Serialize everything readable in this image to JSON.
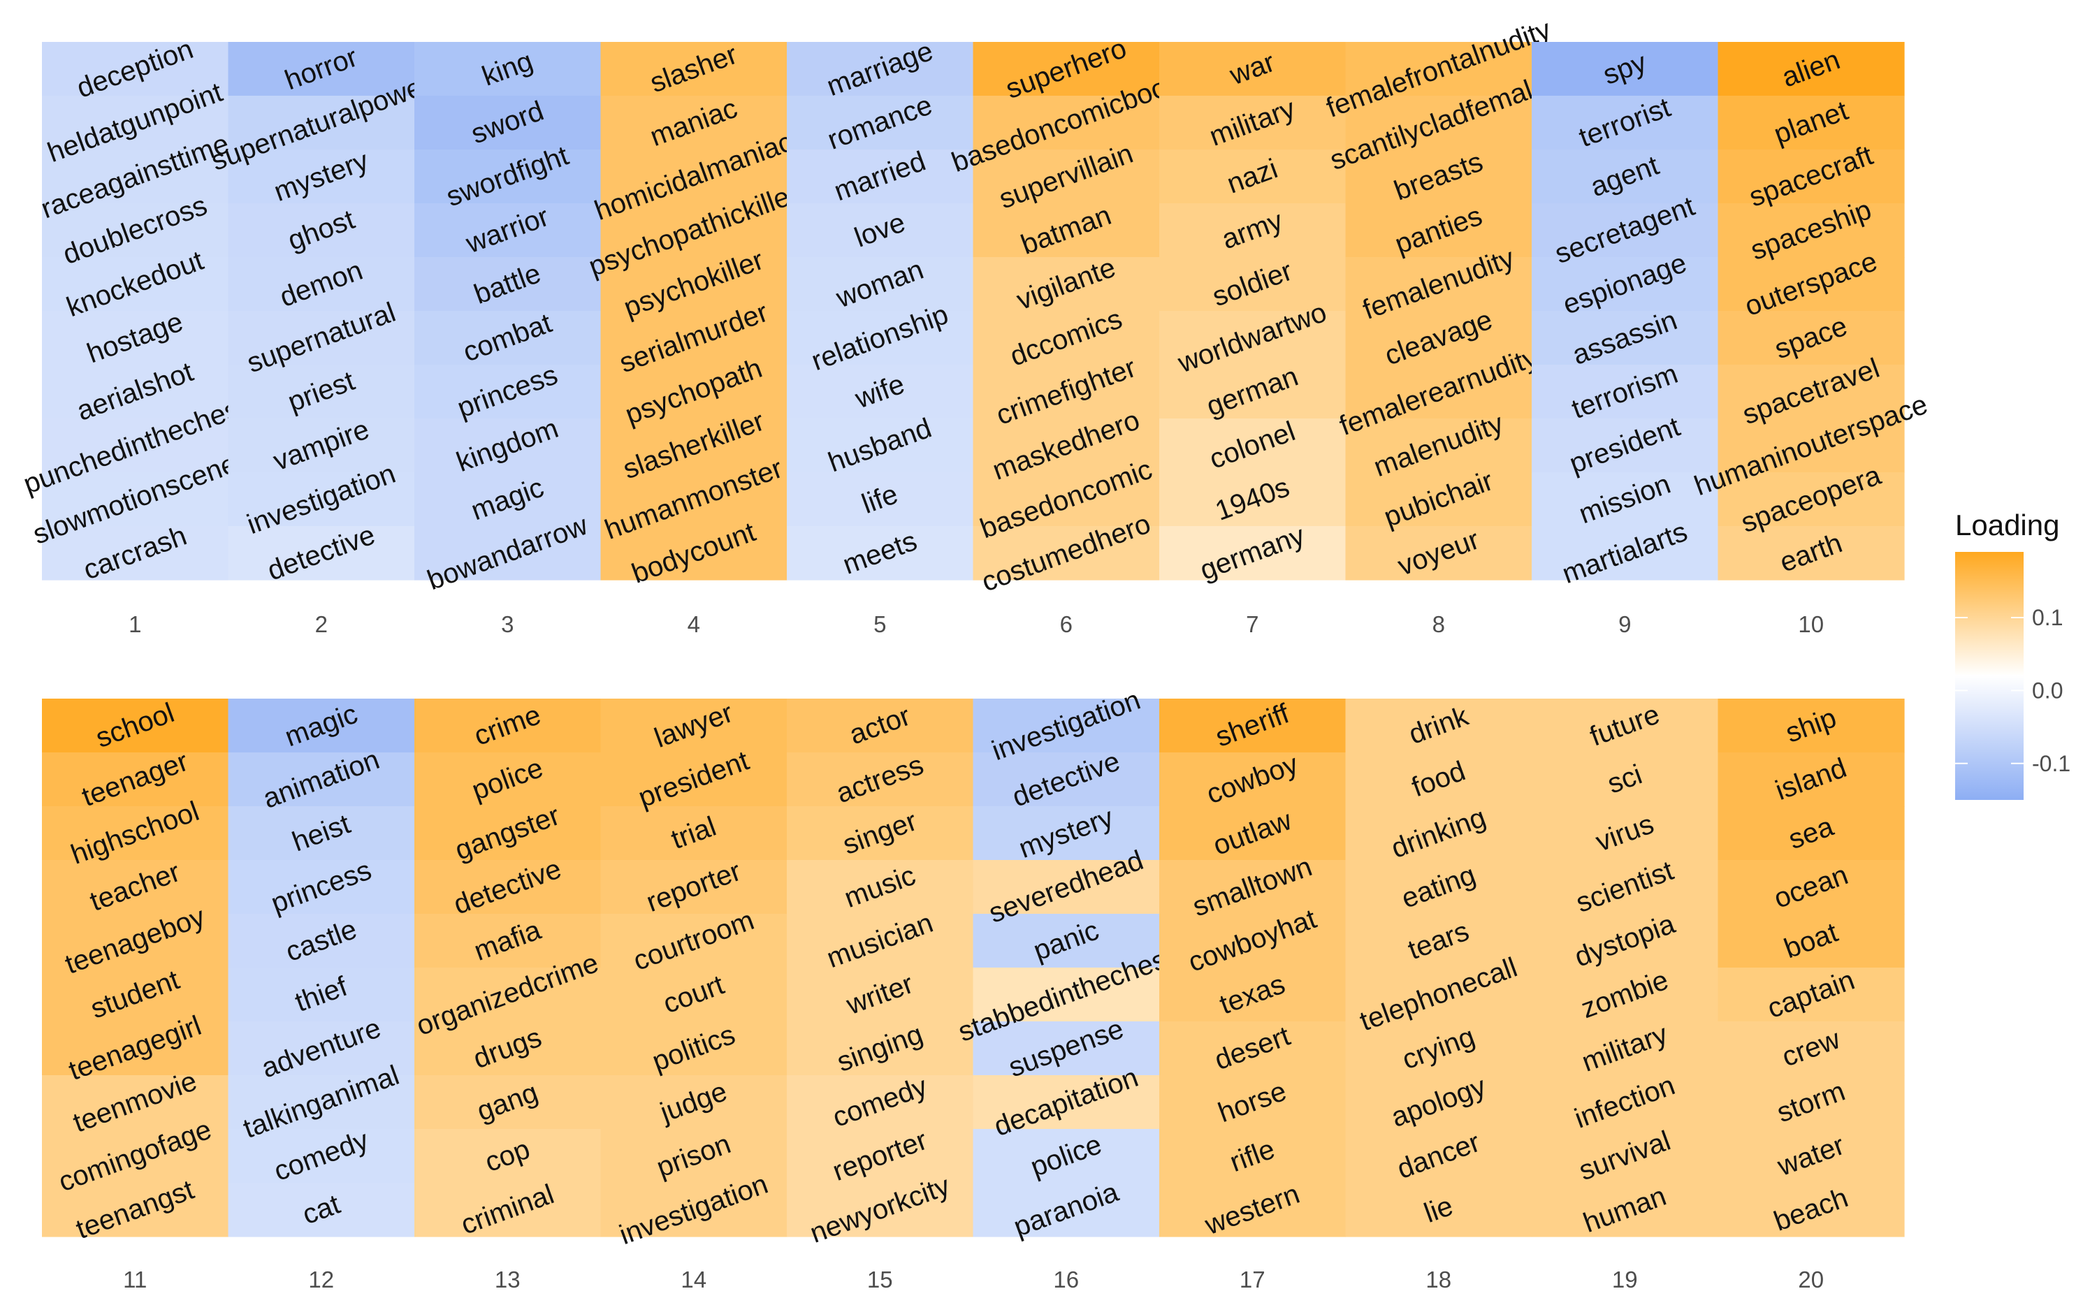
{
  "chart_data": {
    "type": "heatmap",
    "legend": {
      "title": "Loading",
      "placement": "right",
      "ticks": [
        "0.1",
        "0.0",
        "-0.1"
      ],
      "tick_values": [
        0.1,
        0.0,
        -0.1
      ],
      "range": [
        -0.15,
        0.19
      ],
      "low_color": "#8DAEF4",
      "mid_color": "#FFFFFF",
      "high_color": "#FFA81F"
    },
    "facets": [
      {
        "label": "1",
        "words": [
          "deception",
          "heldatgunpoint",
          "raceagainsttime",
          "doublecross",
          "knockedout",
          "hostage",
          "aerialshot",
          "punchedinthechest",
          "slowmotionscene",
          "carcrash"
        ],
        "values": [
          -0.07,
          -0.065,
          -0.063,
          -0.062,
          -0.06,
          -0.058,
          -0.058,
          -0.057,
          -0.056,
          -0.055
        ]
      },
      {
        "label": "2",
        "words": [
          "horror",
          "supernaturalpower",
          "mystery",
          "ghost",
          "demon",
          "supernatural",
          "priest",
          "vampire",
          "investigation",
          "detective"
        ],
        "values": [
          -0.12,
          -0.08,
          -0.075,
          -0.07,
          -0.068,
          -0.065,
          -0.063,
          -0.062,
          -0.06,
          -0.05
        ]
      },
      {
        "label": "3",
        "words": [
          "king",
          "sword",
          "swordfight",
          "warrior",
          "battle",
          "combat",
          "princess",
          "kingdom",
          "magic",
          "bowandarrow"
        ],
        "values": [
          -0.11,
          -0.12,
          -0.11,
          -0.1,
          -0.09,
          -0.08,
          -0.075,
          -0.07,
          -0.07,
          -0.07
        ]
      },
      {
        "label": "4",
        "words": [
          "slasher",
          "maniac",
          "homicidalmaniac",
          "psychopathickiller",
          "psychokiller",
          "serialmurder",
          "psychopath",
          "slasherkiller",
          "humanmonster",
          "bodycount"
        ],
        "values": [
          0.14,
          0.13,
          0.13,
          0.13,
          0.13,
          0.13,
          0.13,
          0.13,
          0.13,
          0.13
        ]
      },
      {
        "label": "5",
        "words": [
          "marriage",
          "romance",
          "married",
          "love",
          "woman",
          "relationship",
          "wife",
          "husband",
          "life",
          "meets"
        ],
        "values": [
          -0.09,
          -0.08,
          -0.07,
          -0.065,
          -0.062,
          -0.06,
          -0.058,
          -0.056,
          -0.055,
          -0.05
        ]
      },
      {
        "label": "6",
        "words": [
          "superhero",
          "basedoncomicbook",
          "supervillain",
          "batman",
          "vigilante",
          "dccomics",
          "crimefighter",
          "maskedhero",
          "basedoncomic",
          "costumedhero"
        ],
        "values": [
          0.17,
          0.13,
          0.12,
          0.12,
          0.1,
          0.1,
          0.1,
          0.1,
          0.1,
          0.09
        ]
      },
      {
        "label": "7",
        "words": [
          "war",
          "military",
          "nazi",
          "army",
          "soldier",
          "worldwartwo",
          "german",
          "colonel",
          "1940s",
          "germany"
        ],
        "values": [
          0.15,
          0.12,
          0.11,
          0.1,
          0.1,
          0.09,
          0.09,
          0.07,
          0.07,
          0.05
        ]
      },
      {
        "label": "8",
        "words": [
          "femalefrontalnudity",
          "scantilycladfemale",
          "breasts",
          "panties",
          "femalenudity",
          "cleavage",
          "femalerearnudity",
          "malenudity",
          "pubichair",
          "voyeur"
        ],
        "values": [
          0.14,
          0.13,
          0.13,
          0.13,
          0.12,
          0.12,
          0.12,
          0.11,
          0.11,
          0.1
        ]
      },
      {
        "label": "9",
        "words": [
          "spy",
          "terrorist",
          "agent",
          "secretagent",
          "espionage",
          "assassin",
          "terrorism",
          "president",
          "mission",
          "martialarts"
        ],
        "values": [
          -0.14,
          -0.1,
          -0.095,
          -0.09,
          -0.085,
          -0.08,
          -0.07,
          -0.065,
          -0.06,
          -0.06
        ]
      },
      {
        "label": "10",
        "words": [
          "alien",
          "planet",
          "spacecraft",
          "spaceship",
          "outerspace",
          "space",
          "spacetravel",
          "humaninouterspace",
          "spaceopera",
          "earth"
        ],
        "values": [
          0.19,
          0.16,
          0.15,
          0.14,
          0.14,
          0.13,
          0.12,
          0.12,
          0.11,
          0.1
        ]
      },
      {
        "label": "11",
        "words": [
          "school",
          "teenager",
          "highschool",
          "teacher",
          "teenageboy",
          "student",
          "teenagegirl",
          "teenmovie",
          "comingofage",
          "teenangst"
        ],
        "values": [
          0.18,
          0.15,
          0.14,
          0.13,
          0.13,
          0.13,
          0.13,
          0.1,
          0.1,
          0.1
        ]
      },
      {
        "label": "12",
        "words": [
          "magic",
          "animation",
          "heist",
          "princess",
          "castle",
          "thief",
          "adventure",
          "talkinganimal",
          "comedy",
          "cat"
        ],
        "values": [
          -0.12,
          -0.095,
          -0.08,
          -0.075,
          -0.07,
          -0.068,
          -0.065,
          -0.062,
          -0.06,
          -0.058
        ]
      },
      {
        "label": "13",
        "words": [
          "crime",
          "police",
          "gangster",
          "detective",
          "mafia",
          "organizedcrime",
          "drugs",
          "gang",
          "cop",
          "criminal"
        ],
        "values": [
          0.15,
          0.14,
          0.14,
          0.13,
          0.12,
          0.11,
          0.11,
          0.1,
          0.09,
          0.09
        ]
      },
      {
        "label": "14",
        "words": [
          "lawyer",
          "president",
          "trial",
          "reporter",
          "courtroom",
          "court",
          "politics",
          "judge",
          "prison",
          "investigation"
        ],
        "values": [
          0.14,
          0.14,
          0.13,
          0.12,
          0.11,
          0.11,
          0.11,
          0.1,
          0.1,
          0.1
        ]
      },
      {
        "label": "15",
        "words": [
          "actor",
          "actress",
          "singer",
          "music",
          "musician",
          "writer",
          "singing",
          "comedy",
          "reporter",
          "newyorkcity"
        ],
        "values": [
          0.13,
          0.12,
          0.11,
          0.09,
          0.09,
          0.09,
          0.09,
          0.08,
          0.08,
          0.08
        ]
      },
      {
        "label": "16",
        "words": [
          "investigation",
          "detective",
          "mystery",
          "severedhead",
          "panic",
          "stabbedinthechest",
          "suspense",
          "decapitation",
          "police",
          "paranoia"
        ],
        "values": [
          -0.1,
          -0.09,
          -0.08,
          0.08,
          -0.08,
          0.06,
          -0.07,
          0.07,
          -0.06,
          -0.06
        ]
      },
      {
        "label": "17",
        "words": [
          "sheriff",
          "cowboy",
          "outlaw",
          "smalltown",
          "cowboyhat",
          "texas",
          "desert",
          "horse",
          "rifle",
          "western"
        ],
        "values": [
          0.17,
          0.14,
          0.14,
          0.12,
          0.12,
          0.12,
          0.11,
          0.11,
          0.11,
          0.11
        ]
      },
      {
        "label": "18",
        "words": [
          "drink",
          "food",
          "drinking",
          "eating",
          "tears",
          "telephonecall",
          "crying",
          "apology",
          "dancer",
          "lie"
        ],
        "values": [
          0.1,
          0.1,
          0.1,
          0.1,
          0.1,
          0.1,
          0.1,
          0.1,
          0.1,
          0.1
        ]
      },
      {
        "label": "19",
        "words": [
          "future",
          "sci",
          "virus",
          "scientist",
          "dystopia",
          "zombie",
          "military",
          "infection",
          "survival",
          "human"
        ],
        "values": [
          0.1,
          0.1,
          0.1,
          0.1,
          0.1,
          0.1,
          0.1,
          0.1,
          0.1,
          0.1
        ]
      },
      {
        "label": "20",
        "words": [
          "ship",
          "island",
          "sea",
          "ocean",
          "boat",
          "captain",
          "crew",
          "storm",
          "water",
          "beach"
        ],
        "values": [
          0.16,
          0.15,
          0.15,
          0.14,
          0.14,
          0.11,
          0.1,
          0.1,
          0.1,
          0.1
        ]
      }
    ]
  }
}
